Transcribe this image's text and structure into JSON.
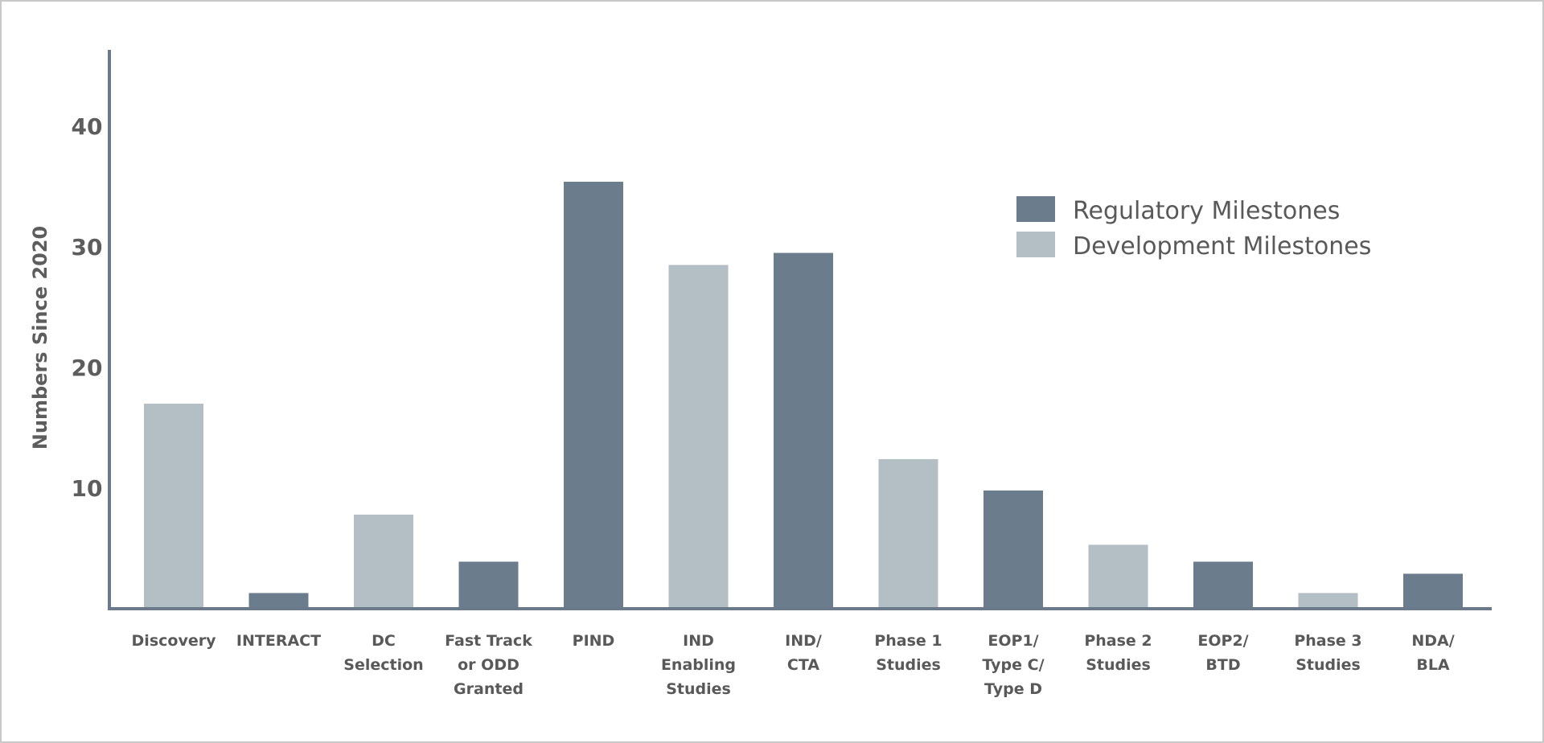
{
  "chart_data": {
    "type": "bar",
    "title": "",
    "xlabel": "",
    "ylabel": "Numbers Since 2020",
    "ylim": [
      0,
      43
    ],
    "yticks": [
      10,
      20,
      30,
      40
    ],
    "grid": false,
    "legend_position": "top-right",
    "colors": {
      "regulatory": "#6b7d8c",
      "development": "#b4bec5",
      "axis": "#6a7a8a"
    },
    "legend": [
      {
        "name": "Regulatory Milestones",
        "kind": "regulatory"
      },
      {
        "name": "Development Milestones",
        "kind": "development"
      }
    ],
    "categories": [
      [
        "Discovery"
      ],
      [
        "INTERACT"
      ],
      [
        "DC",
        "Selection"
      ],
      [
        "Fast Track",
        "or ODD",
        "Granted"
      ],
      [
        "PIND"
      ],
      [
        "IND",
        "Enabling",
        "Studies"
      ],
      [
        "IND/",
        "CTA"
      ],
      [
        "Phase 1",
        "Studies"
      ],
      [
        "EOP1/",
        "Type C/",
        "Type D"
      ],
      [
        "Phase 2",
        "Studies"
      ],
      [
        "EOP2/",
        "BTD"
      ],
      [
        "Phase 3",
        "Studies"
      ],
      [
        "NDA/",
        "BLA"
      ]
    ],
    "values": [
      17,
      1.3,
      7.8,
      3.9,
      35.4,
      28.5,
      29.5,
      12.4,
      9.8,
      5.3,
      3.9,
      1.3,
      2.9
    ],
    "series_kind": [
      "development",
      "regulatory",
      "development",
      "regulatory",
      "regulatory",
      "development",
      "regulatory",
      "development",
      "regulatory",
      "development",
      "regulatory",
      "development",
      "regulatory"
    ]
  }
}
